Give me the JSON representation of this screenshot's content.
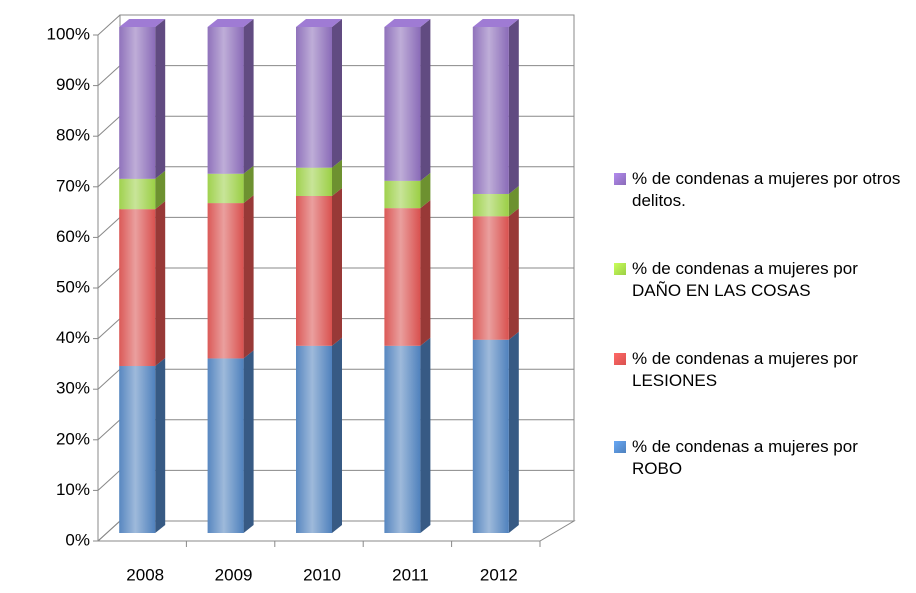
{
  "chart_data": {
    "type": "bar",
    "stacked": true,
    "categories": [
      "2008",
      "2009",
      "2010",
      "2011",
      "2012"
    ],
    "series": [
      {
        "name": "% de condenas a mujeres por ROBO",
        "color": "#4f81bd",
        "values": [
          33,
          34.5,
          37,
          37,
          38.2
        ]
      },
      {
        "name": "% de condenas a mujeres por LESIONES",
        "color": "#d9514f",
        "values": [
          31,
          30.7,
          29.6,
          27.2,
          24.4
        ]
      },
      {
        "name": "% de condenas a mujeres por DAÑO EN LAS COSAS",
        "color": "#9bcf45",
        "values": [
          6,
          5.8,
          5.6,
          5.4,
          4.4
        ]
      },
      {
        "name": "% de condenas a mujeres por otros delitos.",
        "color": "#8a6bb8",
        "values": [
          30,
          29,
          27.8,
          30.4,
          33
        ]
      }
    ],
    "ylim": [
      0,
      100
    ],
    "yticks": [
      {
        "value": 0,
        "label": "0%"
      },
      {
        "value": 10,
        "label": "10%"
      },
      {
        "value": 20,
        "label": "20%"
      },
      {
        "value": 30,
        "label": "30%"
      },
      {
        "value": 40,
        "label": "40%"
      },
      {
        "value": 50,
        "label": "50%"
      },
      {
        "value": 60,
        "label": "60%"
      },
      {
        "value": 70,
        "label": "70%"
      },
      {
        "value": 80,
        "label": "80%"
      },
      {
        "value": 90,
        "label": "90%"
      },
      {
        "value": 100,
        "label": "100%"
      }
    ],
    "grid": true,
    "legend": "right"
  }
}
